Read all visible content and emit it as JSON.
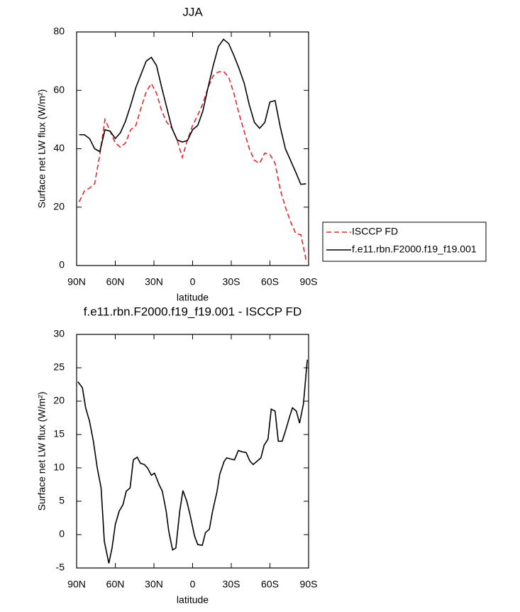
{
  "chart_data": [
    {
      "type": "line",
      "title": "JJA",
      "xlabel": "latitude",
      "ylabel": "Surface net LW flux (W/m²)",
      "x": [
        88,
        84,
        80,
        76,
        72,
        68,
        64,
        60,
        56,
        52,
        48,
        44,
        40,
        36,
        32,
        28,
        24,
        20,
        16,
        12,
        8,
        4,
        0,
        -4,
        -8,
        -12,
        -16,
        -20,
        -24,
        -28,
        -32,
        -36,
        -40,
        -44,
        -48,
        -52,
        -56,
        -60,
        -64,
        -68,
        -72,
        -76,
        -80,
        -84,
        -88
      ],
      "xlim": [
        90,
        -90
      ],
      "xticks": [
        {
          "value": 90,
          "label": "90N"
        },
        {
          "value": 60,
          "label": "60N"
        },
        {
          "value": 30,
          "label": "30N"
        },
        0,
        {
          "value": -30,
          "label": "30S"
        },
        {
          "value": -60,
          "label": "60S"
        },
        {
          "value": -90,
          "label": "90S"
        }
      ],
      "ylim": [
        0,
        80
      ],
      "yticks": [
        0,
        20,
        40,
        60,
        80
      ],
      "legend": "outside-right",
      "series": [
        {
          "name": "ISCCP FD",
          "color": "#e8262a",
          "dashed": true,
          "values": [
            21.8,
            25.5,
            26.5,
            28,
            38,
            50,
            46,
            42,
            40.5,
            42,
            46.5,
            48,
            54,
            59.5,
            62.3,
            59,
            53,
            49,
            47,
            43,
            37,
            43,
            48,
            51.5,
            55.5,
            61,
            65,
            66.3,
            66.5,
            64.5,
            59,
            52,
            46,
            40,
            36,
            35,
            38.5,
            38,
            35,
            26,
            20,
            15,
            11,
            10.5,
            2
          ]
        },
        {
          "name": "f.e11.rbn.F2000.f19_f19.001",
          "color": "#000000",
          "dashed": false,
          "values": [
            44.8,
            44.8,
            43.5,
            40,
            39,
            46.5,
            46,
            43.5,
            45.5,
            49.5,
            55,
            61,
            65.5,
            70,
            71.3,
            68.5,
            61,
            54,
            47,
            43,
            42.3,
            42.8,
            46.5,
            48,
            53,
            61,
            68.5,
            75,
            77.5,
            76,
            72,
            67.5,
            62.5,
            55,
            49,
            47,
            49,
            56,
            56.5,
            47.5,
            40,
            36,
            32,
            27.8,
            28
          ]
        }
      ]
    },
    {
      "type": "line",
      "title": "f.e11.rbn.F2000.f19_f19.001 - ISCCP FD",
      "xlabel": "latitude",
      "ylabel": "Surface net LW flux (W/m²)",
      "x": [
        89,
        85.5,
        83,
        80,
        77,
        74,
        71,
        68.5,
        65,
        62.5,
        60,
        57,
        54,
        51.5,
        48.5,
        46,
        43,
        40.5,
        37.5,
        35,
        32,
        29.5,
        26,
        23.5,
        20.5,
        18.5,
        15.5,
        13,
        10,
        7.5,
        4.5,
        2,
        -1.5,
        -4,
        -7.5,
        -10,
        -13,
        -15.5,
        -19,
        -21,
        -24.5,
        -26.5,
        -30,
        -32.5,
        -35.5,
        -38.5,
        -41.5,
        -44.5,
        -47,
        -50,
        -53,
        -55.5,
        -58.5,
        -61,
        -64,
        -66.5,
        -69.5,
        -72,
        -75,
        -77.5,
        -80.5,
        -83,
        -86,
        -89
      ],
      "xlim": [
        90,
        -90
      ],
      "xticks": [
        {
          "value": 90,
          "label": "90N"
        },
        {
          "value": 60,
          "label": "60N"
        },
        {
          "value": 30,
          "label": "30N"
        },
        0,
        {
          "value": -30,
          "label": "30S"
        },
        {
          "value": -60,
          "label": "60S"
        },
        {
          "value": -90,
          "label": "90S"
        }
      ],
      "ylim": [
        -5,
        30
      ],
      "yticks": [
        -5,
        0,
        5,
        10,
        15,
        20,
        25,
        30
      ],
      "series": [
        {
          "color": "#000000",
          "dashed": false,
          "values": [
            22.9,
            22,
            19,
            17,
            14,
            10,
            7,
            -1,
            -4.3,
            -2,
            1.5,
            3.5,
            4.5,
            6.5,
            7,
            11.2,
            11.6,
            10.7,
            10.5,
            10,
            8.9,
            9.2,
            7.5,
            6.5,
            3.5,
            0.5,
            -2.3,
            -2,
            3.5,
            6.6,
            5,
            3,
            -0.2,
            -1.5,
            -1.6,
            0.3,
            0.8,
            3.5,
            6.5,
            9,
            11,
            11.5,
            11.3,
            11.2,
            12.6,
            12.4,
            12.3,
            11,
            10.5,
            11,
            11.5,
            13.4,
            14.3,
            18.8,
            18.5,
            14,
            14,
            15.5,
            17.5,
            19,
            18.5,
            16.7,
            19.6,
            26.2
          ]
        }
      ]
    }
  ]
}
